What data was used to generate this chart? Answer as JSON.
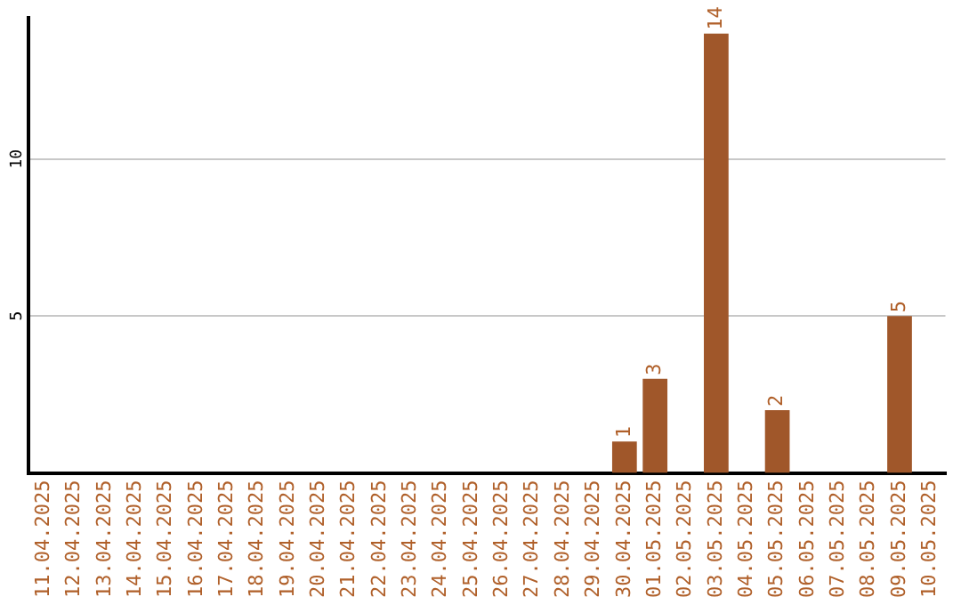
{
  "chart_data": {
    "type": "bar",
    "categories": [
      "11.04.2025",
      "12.04.2025",
      "13.04.2025",
      "14.04.2025",
      "15.04.2025",
      "16.04.2025",
      "17.04.2025",
      "18.04.2025",
      "19.04.2025",
      "20.04.2025",
      "21.04.2025",
      "22.04.2025",
      "23.04.2025",
      "24.04.2025",
      "25.04.2025",
      "26.04.2025",
      "27.04.2025",
      "28.04.2025",
      "29.04.2025",
      "30.04.2025",
      "01.05.2025",
      "02.05.2025",
      "03.05.2025",
      "04.05.2025",
      "05.05.2025",
      "06.05.2025",
      "07.05.2025",
      "08.05.2025",
      "09.05.2025",
      "10.05.2025"
    ],
    "values": [
      null,
      null,
      null,
      null,
      null,
      null,
      null,
      null,
      null,
      null,
      null,
      null,
      null,
      null,
      null,
      null,
      null,
      null,
      null,
      1,
      3,
      null,
      14,
      null,
      2,
      null,
      null,
      null,
      5,
      null
    ],
    "color": "#a0572a",
    "ylim": [
      0,
      14.5
    ],
    "yticks": [
      5,
      10
    ],
    "grid": "y",
    "legend": false,
    "data_labels": true
  }
}
